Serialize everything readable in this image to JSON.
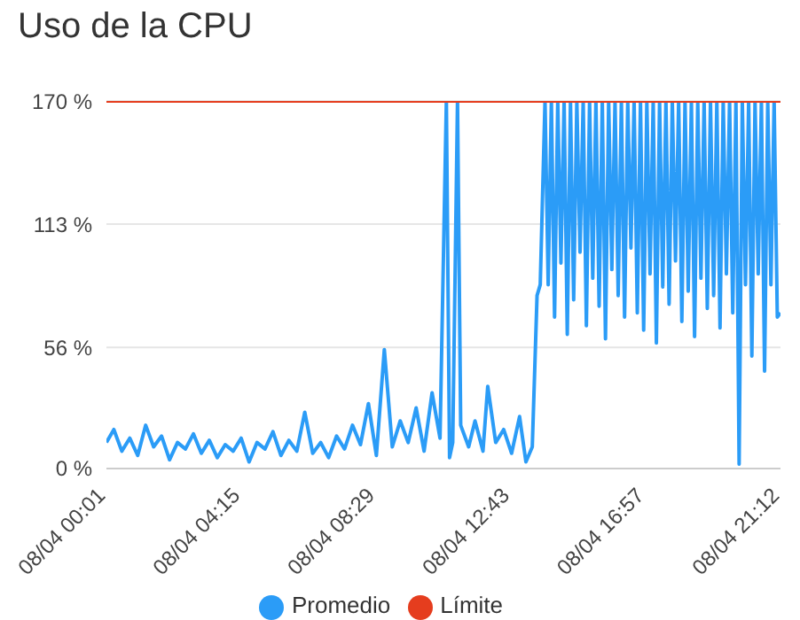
{
  "chart_data": {
    "type": "line",
    "title": "Uso de la CPU",
    "xlim": [
      "--04-08T00:01",
      "--04-08T21:12"
    ],
    "xticks": [
      {
        "value": "--04-08T00:01",
        "label": "08/04 00:01"
      },
      {
        "value": "--04-08T04:15",
        "label": "08/04 04:15"
      },
      {
        "value": "--04-08T08:29",
        "label": "08/04 08:29"
      },
      {
        "value": "--04-08T12:43",
        "label": "08/04 12:43"
      },
      {
        "value": "--04-08T16:57",
        "label": "08/04 16:57"
      },
      {
        "value": "--04-08T21:12",
        "label": "08/04 21:12"
      }
    ],
    "ylim": [
      0,
      170
    ],
    "yticks": [
      {
        "value": 0,
        "label": "0 %"
      },
      {
        "value": 56,
        "label": "56 %"
      },
      {
        "value": 113,
        "label": "113 %"
      },
      {
        "value": 170,
        "label": "170 %"
      }
    ],
    "grid": "y",
    "legend": "bottom",
    "marker": "none",
    "line_style": "solid",
    "series": [
      {
        "name": "Promedio",
        "color": "#2b9cf7",
        "x": [
          "--04-08T00:01",
          "--04-08T00:15",
          "--04-08T00:30",
          "--04-08T00:45",
          "--04-08T01:00",
          "--04-08T01:15",
          "--04-08T01:30",
          "--04-08T01:45",
          "--04-08T02:00",
          "--04-08T02:15",
          "--04-08T02:30",
          "--04-08T02:45",
          "--04-08T03:00",
          "--04-08T03:15",
          "--04-08T03:30",
          "--04-08T03:45",
          "--04-08T04:00",
          "--04-08T04:15",
          "--04-08T04:30",
          "--04-08T04:45",
          "--04-08T05:00",
          "--04-08T05:15",
          "--04-08T05:30",
          "--04-08T05:45",
          "--04-08T06:00",
          "--04-08T06:15",
          "--04-08T06:30",
          "--04-08T06:45",
          "--04-08T07:00",
          "--04-08T07:15",
          "--04-08T07:30",
          "--04-08T07:45",
          "--04-08T08:00",
          "--04-08T08:15",
          "--04-08T08:30",
          "--04-08T08:45",
          "--04-08T09:00",
          "--04-08T09:15",
          "--04-08T09:30",
          "--04-08T09:45",
          "--04-08T10:00",
          "--04-08T10:15",
          "--04-08T10:30",
          "--04-08T10:42",
          "--04-08T10:48",
          "--04-08T10:54",
          "--04-08T11:03",
          "--04-08T11:09",
          "--04-08T11:24",
          "--04-08T11:36",
          "--04-08T11:51",
          "--04-08T12:00",
          "--04-08T12:15",
          "--04-08T12:30",
          "--04-08T12:45",
          "--04-08T13:00",
          "--04-08T13:12",
          "--04-08T13:24",
          "--04-08T13:33",
          "--04-08T13:39",
          "--04-08T13:48",
          "--04-08T13:54",
          "--04-08T14:00",
          "--04-08T14:06",
          "--04-08T14:12",
          "--04-08T14:18",
          "--04-08T14:24",
          "--04-08T14:30",
          "--04-08T14:36",
          "--04-08T14:42",
          "--04-08T14:48",
          "--04-08T14:54",
          "--04-08T15:00",
          "--04-08T15:06",
          "--04-08T15:12",
          "--04-08T15:18",
          "--04-08T15:24",
          "--04-08T15:30",
          "--04-08T15:36",
          "--04-08T15:42",
          "--04-08T15:48",
          "--04-08T15:54",
          "--04-08T16:00",
          "--04-08T16:06",
          "--04-08T16:12",
          "--04-08T16:18",
          "--04-08T16:24",
          "--04-08T16:30",
          "--04-08T16:36",
          "--04-08T16:42",
          "--04-08T16:48",
          "--04-08T16:54",
          "--04-08T17:00",
          "--04-08T17:06",
          "--04-08T17:12",
          "--04-08T17:18",
          "--04-08T17:24",
          "--04-08T17:30",
          "--04-08T17:36",
          "--04-08T17:42",
          "--04-08T17:48",
          "--04-08T17:54",
          "--04-08T18:00",
          "--04-08T18:06",
          "--04-08T18:12",
          "--04-08T18:18",
          "--04-08T18:24",
          "--04-08T18:30",
          "--04-08T18:36",
          "--04-08T18:42",
          "--04-08T18:48",
          "--04-08T18:54",
          "--04-08T19:00",
          "--04-08T19:06",
          "--04-08T19:12",
          "--04-08T19:18",
          "--04-08T19:24",
          "--04-08T19:30",
          "--04-08T19:36",
          "--04-08T19:42",
          "--04-08T19:48",
          "--04-08T19:54",
          "--04-08T20:00",
          "--04-08T20:06",
          "--04-08T20:12",
          "--04-08T20:18",
          "--04-08T20:24",
          "--04-08T20:30",
          "--04-08T20:36",
          "--04-08T20:42",
          "--04-08T20:48",
          "--04-08T20:54",
          "--04-08T21:00",
          "--04-08T21:06",
          "--04-08T21:12"
        ],
        "values": [
          12,
          18,
          8,
          14,
          6,
          20,
          10,
          15,
          4,
          12,
          9,
          16,
          7,
          13,
          5,
          11,
          8,
          14,
          3,
          12,
          9,
          17,
          6,
          13,
          8,
          26,
          7,
          12,
          5,
          15,
          9,
          20,
          11,
          30,
          6,
          55,
          10,
          22,
          12,
          28,
          8,
          35,
          14,
          170,
          5,
          12,
          170,
          20,
          10,
          22,
          8,
          38,
          12,
          18,
          7,
          24,
          3,
          10,
          80,
          85,
          170,
          85,
          170,
          70,
          170,
          95,
          170,
          62,
          170,
          78,
          170,
          100,
          170,
          66,
          170,
          88,
          170,
          75,
          170,
          60,
          170,
          92,
          170,
          80,
          170,
          70,
          170,
          102,
          170,
          72,
          170,
          64,
          170,
          90,
          170,
          58,
          170,
          84,
          170,
          76,
          170,
          96,
          170,
          68,
          170,
          82,
          170,
          61,
          170,
          88,
          170,
          74,
          170,
          80,
          170,
          65,
          170,
          90,
          170,
          72,
          170,
          2,
          170,
          85,
          170,
          52,
          170,
          90,
          170,
          45,
          170,
          85,
          170,
          70,
          72
        ]
      },
      {
        "name": "Límite",
        "color": "#e53d1e",
        "x": [
          "--04-08T00:01",
          "--04-08T21:12"
        ],
        "values": [
          170,
          170
        ]
      }
    ]
  }
}
